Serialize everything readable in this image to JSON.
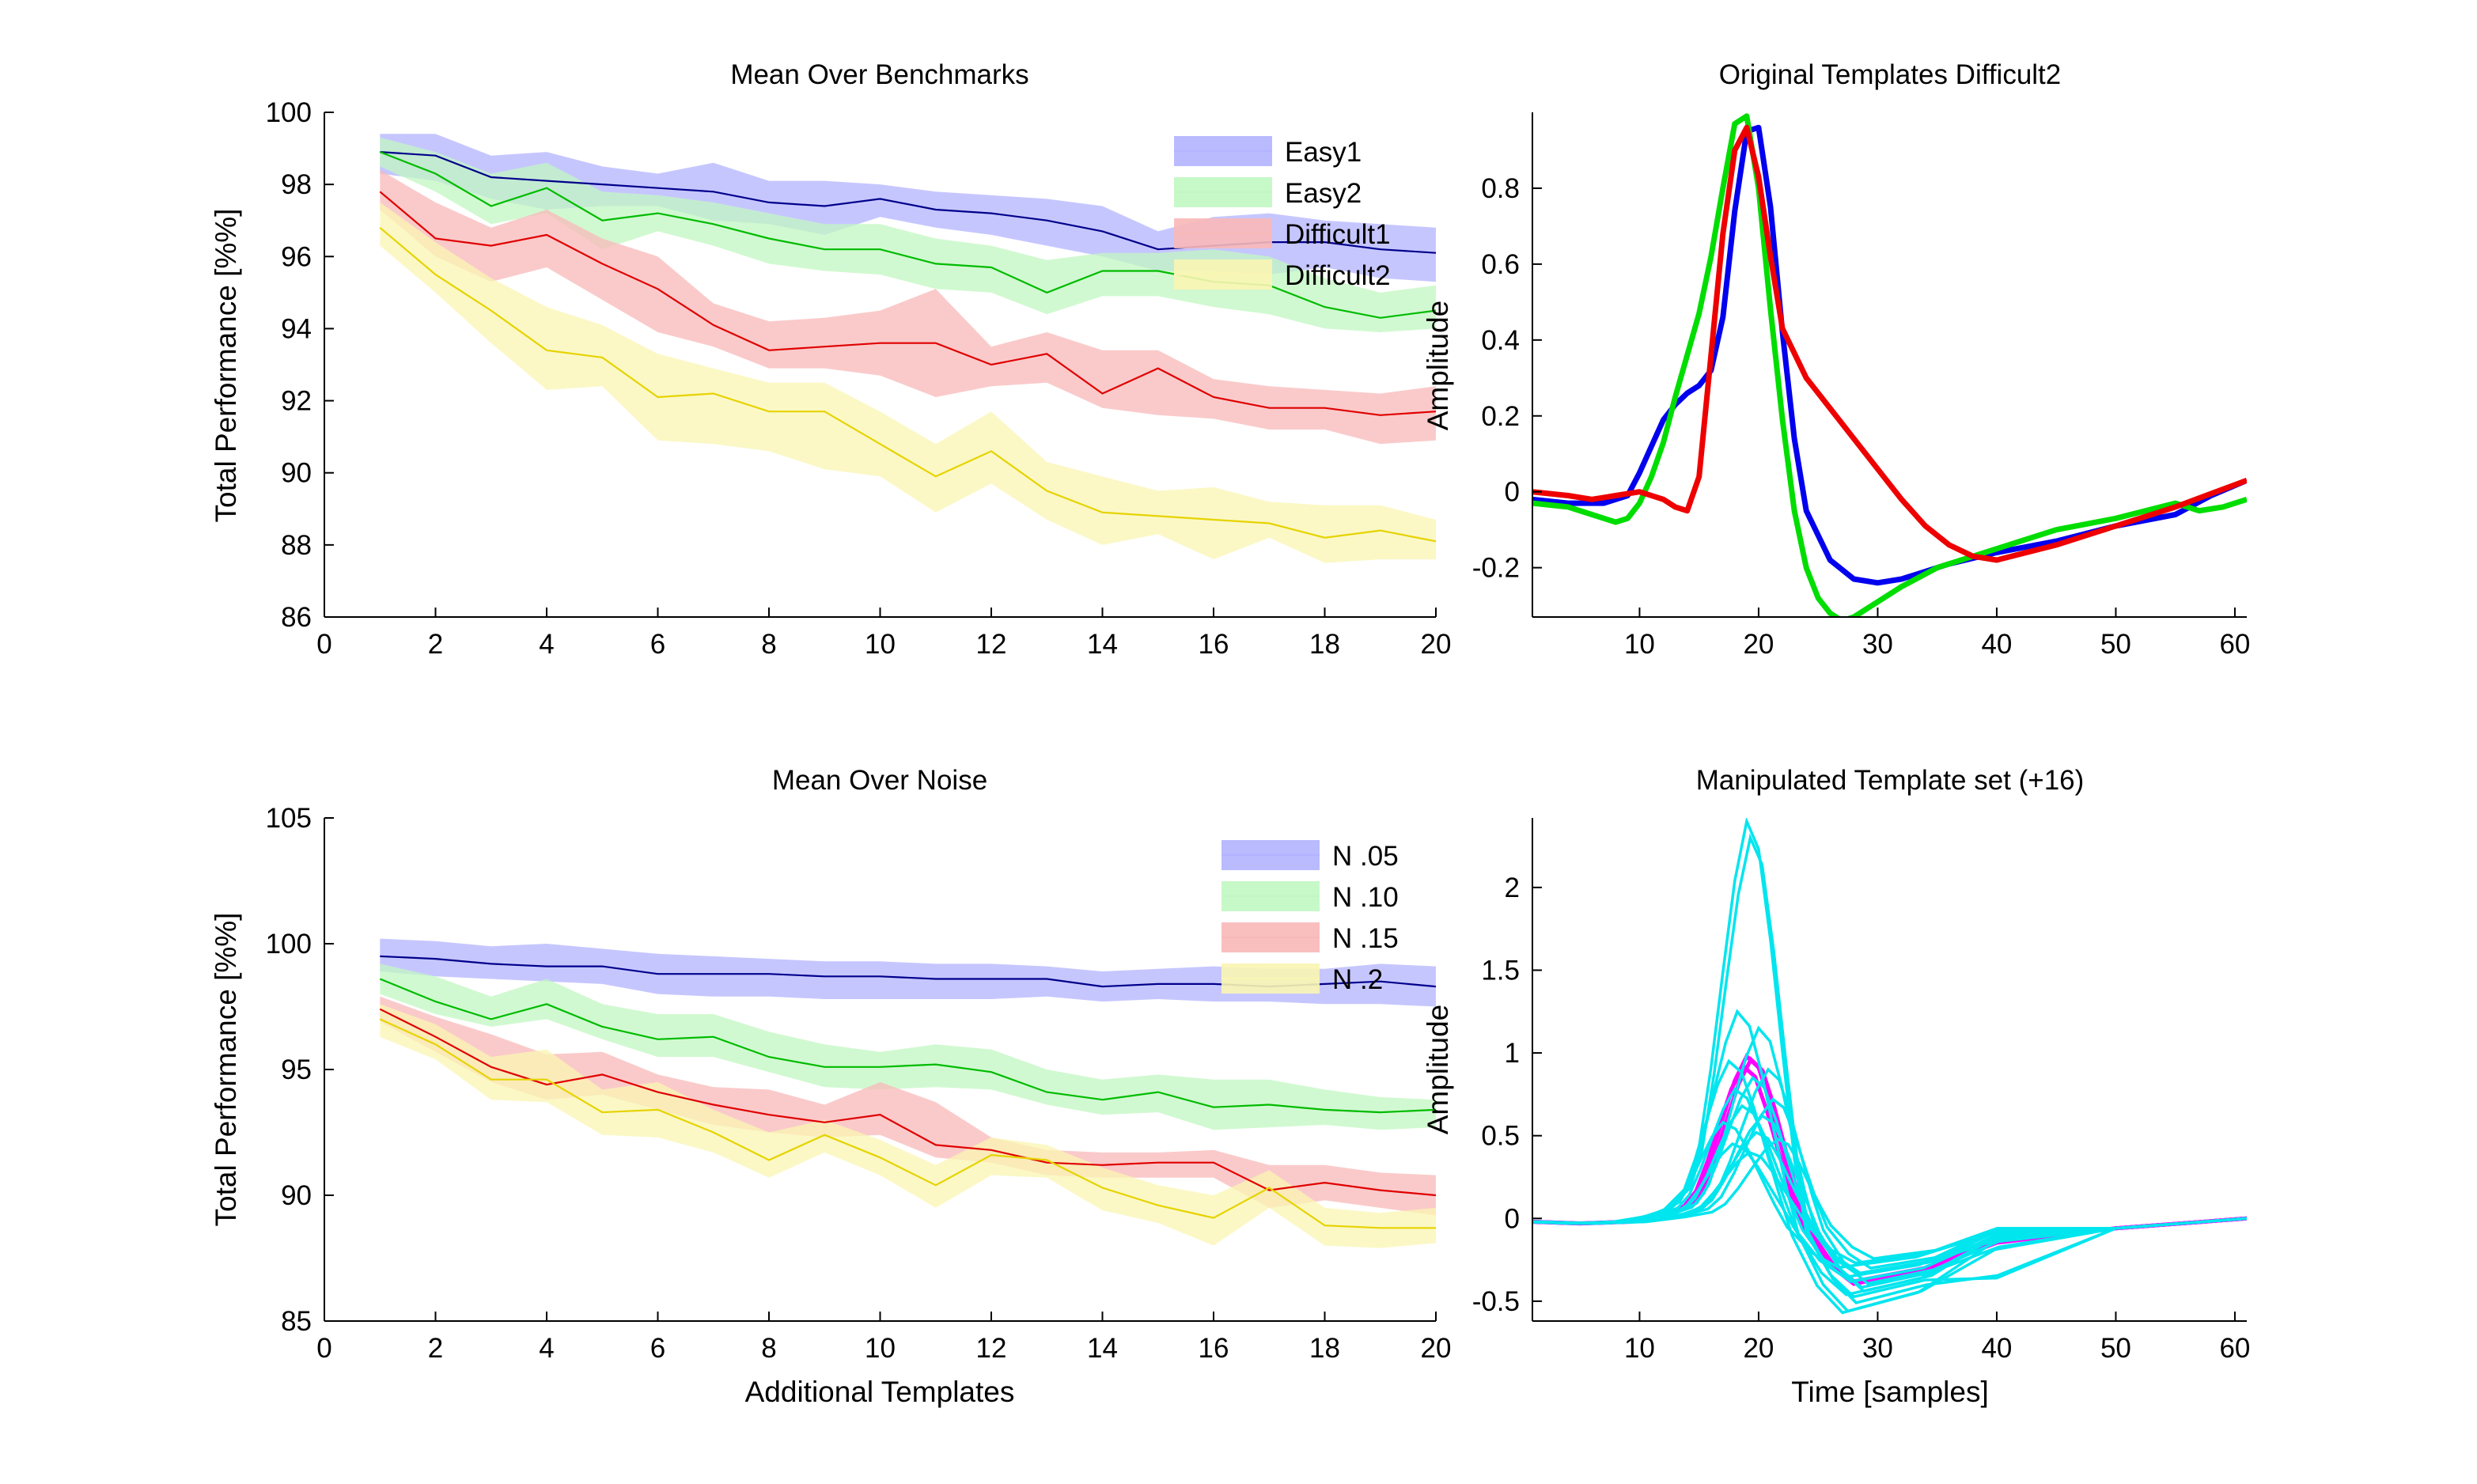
{
  "chart_data": [
    {
      "id": "benchmarks",
      "type": "area",
      "title": "Mean Over Benchmarks",
      "xlabel": "",
      "ylabel": "Total Performance [%%]",
      "xlim": [
        0,
        20
      ],
      "ylim": [
        86,
        100
      ],
      "xticks": [
        0,
        2,
        4,
        6,
        8,
        10,
        12,
        14,
        16,
        18,
        20
      ],
      "yticks": [
        86,
        88,
        90,
        92,
        94,
        96,
        98,
        100
      ],
      "legend": "top-right",
      "grid": false,
      "x": [
        1,
        2,
        3,
        4,
        5,
        6,
        7,
        8,
        9,
        10,
        11,
        12,
        13,
        14,
        15,
        16,
        17,
        18,
        19,
        20
      ],
      "series": [
        {
          "name": "Easy1",
          "line_color": "#00008B",
          "band_color": "#b3b3ff",
          "mean": [
            98.9,
            98.8,
            98.2,
            98.1,
            98.0,
            97.9,
            97.8,
            97.5,
            97.4,
            97.6,
            97.3,
            97.2,
            97.0,
            96.7,
            96.2,
            96.3,
            96.4,
            96.4,
            96.2,
            96.1
          ],
          "upper": [
            99.4,
            99.4,
            98.8,
            98.9,
            98.5,
            98.3,
            98.6,
            98.1,
            98.1,
            98.0,
            97.8,
            97.7,
            97.6,
            97.4,
            96.7,
            97.1,
            97.2,
            97.0,
            96.9,
            96.8
          ],
          "lower": [
            98.3,
            98.1,
            97.6,
            97.3,
            97.4,
            97.4,
            97.0,
            96.9,
            96.6,
            97.1,
            96.8,
            96.6,
            96.3,
            96.0,
            95.6,
            95.6,
            95.5,
            95.7,
            95.4,
            95.3
          ]
        },
        {
          "name": "Easy2",
          "line_color": "#00BB00",
          "band_color": "#c1f7c1",
          "mean": [
            98.9,
            98.3,
            97.4,
            97.9,
            97.0,
            97.2,
            96.9,
            96.5,
            96.2,
            96.2,
            95.8,
            95.7,
            95.0,
            95.6,
            95.6,
            95.3,
            95.2,
            94.6,
            94.3,
            94.5
          ],
          "upper": [
            99.3,
            98.9,
            98.3,
            98.6,
            97.8,
            97.7,
            97.5,
            97.2,
            96.9,
            96.9,
            96.5,
            96.3,
            95.9,
            96.1,
            96.1,
            96.2,
            96.0,
            95.4,
            95.0,
            95.2
          ],
          "lower": [
            98.5,
            97.8,
            96.9,
            97.2,
            96.2,
            96.7,
            96.3,
            95.8,
            95.6,
            95.5,
            95.1,
            95.0,
            94.4,
            94.9,
            94.9,
            94.6,
            94.4,
            94.0,
            93.9,
            94.0
          ]
        },
        {
          "name": "Difficult1",
          "line_color": "#E00000",
          "band_color": "#f8b8b8",
          "mean": [
            97.8,
            96.5,
            96.3,
            96.6,
            95.8,
            95.1,
            94.1,
            93.4,
            93.5,
            93.6,
            93.6,
            93.0,
            93.3,
            92.2,
            92.9,
            92.1,
            91.8,
            91.8,
            91.6,
            91.7
          ],
          "upper": [
            98.4,
            97.5,
            96.8,
            97.3,
            96.5,
            96.0,
            94.7,
            94.2,
            94.3,
            94.5,
            95.1,
            93.5,
            93.9,
            93.4,
            93.4,
            92.6,
            92.4,
            92.3,
            92.2,
            92.4
          ],
          "lower": [
            97.3,
            96.0,
            95.3,
            95.7,
            94.8,
            93.9,
            93.5,
            92.9,
            92.9,
            92.7,
            92.1,
            92.4,
            92.5,
            91.8,
            91.6,
            91.5,
            91.2,
            91.2,
            90.8,
            90.9
          ]
        },
        {
          "name": "Difficult2",
          "line_color": "#E6D300",
          "band_color": "#f9f5b3",
          "mean": [
            96.8,
            95.5,
            94.5,
            93.4,
            93.2,
            92.1,
            92.2,
            91.7,
            91.7,
            90.8,
            89.9,
            90.6,
            89.5,
            88.9,
            88.8,
            88.7,
            88.6,
            88.2,
            88.4,
            88.1
          ],
          "upper": [
            97.5,
            96.4,
            95.4,
            94.6,
            94.1,
            93.3,
            92.9,
            92.5,
            92.5,
            91.7,
            90.8,
            91.7,
            90.3,
            89.9,
            89.5,
            89.6,
            89.2,
            89.1,
            89.1,
            88.7
          ],
          "lower": [
            96.3,
            95.0,
            93.6,
            92.3,
            92.4,
            90.9,
            90.8,
            90.6,
            90.1,
            89.9,
            88.9,
            89.7,
            88.7,
            88.0,
            88.3,
            87.6,
            88.2,
            87.5,
            87.6,
            87.6
          ]
        }
      ]
    },
    {
      "id": "noise",
      "type": "area",
      "title": "Mean Over Noise",
      "xlabel": "Additional Templates",
      "ylabel": "Total Performance [%%]",
      "xlim": [
        0,
        20
      ],
      "ylim": [
        85,
        105
      ],
      "xticks": [
        0,
        2,
        4,
        6,
        8,
        10,
        12,
        14,
        16,
        18,
        20
      ],
      "yticks": [
        85,
        90,
        95,
        100,
        105
      ],
      "legend": "top-right",
      "grid": false,
      "x": [
        1,
        2,
        3,
        4,
        5,
        6,
        7,
        8,
        9,
        10,
        11,
        12,
        13,
        14,
        15,
        16,
        17,
        18,
        19,
        20
      ],
      "series": [
        {
          "name": "N .05",
          "line_color": "#00008B",
          "band_color": "#b3b3ff",
          "mean": [
            99.5,
            99.4,
            99.2,
            99.1,
            99.1,
            98.8,
            98.8,
            98.8,
            98.7,
            98.7,
            98.6,
            98.6,
            98.6,
            98.3,
            98.4,
            98.4,
            98.3,
            98.4,
            98.5,
            98.3
          ],
          "upper": [
            100.2,
            100.1,
            99.9,
            100.0,
            99.8,
            99.6,
            99.5,
            99.4,
            99.3,
            99.3,
            99.2,
            99.2,
            99.1,
            98.9,
            99.0,
            99.1,
            99.0,
            99.0,
            99.2,
            99.1
          ],
          "lower": [
            98.9,
            98.7,
            98.6,
            98.5,
            98.4,
            98.0,
            97.9,
            97.9,
            97.8,
            97.8,
            97.8,
            97.8,
            97.9,
            97.7,
            97.8,
            97.7,
            97.7,
            97.6,
            97.6,
            97.5
          ]
        },
        {
          "name": "N .10",
          "line_color": "#00BB00",
          "band_color": "#c1f7c1",
          "mean": [
            98.6,
            97.7,
            97.0,
            97.6,
            96.7,
            96.2,
            96.3,
            95.5,
            95.1,
            95.1,
            95.2,
            94.9,
            94.1,
            93.8,
            94.1,
            93.5,
            93.6,
            93.4,
            93.3,
            93.4
          ],
          "upper": [
            99.2,
            98.7,
            97.9,
            98.6,
            97.6,
            97.2,
            97.2,
            96.5,
            96.0,
            95.7,
            96.0,
            95.8,
            95.0,
            94.6,
            94.8,
            94.6,
            94.6,
            94.2,
            93.9,
            93.8
          ],
          "lower": [
            98.0,
            97.2,
            96.7,
            97.0,
            96.2,
            95.5,
            95.5,
            94.9,
            94.3,
            94.2,
            94.3,
            94.2,
            93.6,
            93.2,
            93.3,
            92.6,
            92.7,
            92.8,
            92.6,
            92.7
          ]
        },
        {
          "name": "N .15",
          "line_color": "#E00000",
          "band_color": "#f8b8b8",
          "mean": [
            97.4,
            96.3,
            95.1,
            94.4,
            94.8,
            94.1,
            93.6,
            93.2,
            92.9,
            93.2,
            92.0,
            91.8,
            91.3,
            91.2,
            91.3,
            91.3,
            90.2,
            90.5,
            90.2,
            90.0
          ],
          "upper": [
            97.9,
            97.1,
            96.4,
            95.6,
            95.7,
            94.8,
            94.3,
            94.2,
            93.6,
            94.5,
            93.7,
            92.3,
            91.8,
            91.7,
            91.7,
            91.8,
            91.2,
            91.2,
            90.9,
            90.8
          ],
          "lower": [
            96.9,
            95.7,
            94.5,
            93.8,
            94.0,
            93.4,
            92.8,
            92.5,
            92.3,
            92.4,
            91.5,
            91.3,
            90.8,
            90.7,
            90.7,
            90.7,
            89.5,
            89.8,
            89.5,
            89.2
          ]
        },
        {
          "name": "N .2",
          "line_color": "#E6D300",
          "band_color": "#f9f5b3",
          "mean": [
            97.0,
            96.0,
            94.6,
            94.6,
            93.3,
            93.4,
            92.5,
            91.4,
            92.4,
            91.5,
            90.4,
            91.6,
            91.4,
            90.3,
            89.6,
            89.1,
            90.3,
            88.8,
            88.7,
            88.7
          ],
          "upper": [
            97.6,
            96.8,
            95.5,
            95.8,
            94.2,
            94.5,
            93.4,
            92.5,
            93.0,
            92.2,
            91.2,
            92.3,
            92.0,
            91.1,
            90.4,
            90.0,
            91.0,
            89.5,
            89.3,
            89.5
          ],
          "lower": [
            96.3,
            95.4,
            93.8,
            93.7,
            92.4,
            92.3,
            91.7,
            90.7,
            91.7,
            90.8,
            89.5,
            90.8,
            90.7,
            89.4,
            88.9,
            88.0,
            89.5,
            88.0,
            87.9,
            88.1
          ]
        }
      ]
    },
    {
      "id": "original",
      "type": "line",
      "title": "Original Templates Difficult2",
      "xlabel": "",
      "ylabel": "Amplitude",
      "xlim": [
        1,
        61
      ],
      "ylim": [
        -0.33,
        1.0
      ],
      "xticks": [
        10,
        20,
        30,
        40,
        50,
        60
      ],
      "yticks": [
        -0.2,
        0,
        0.2,
        0.4,
        0.6,
        0.8
      ],
      "ytick_labels": [
        "-0.2",
        "0",
        "0.2",
        "0.4",
        "0.6",
        "0.8"
      ],
      "grid": false,
      "series": [
        {
          "color": "#0000EE",
          "x": [
            1,
            4,
            7,
            9,
            10,
            11,
            12,
            13,
            14,
            15,
            16,
            17,
            18,
            19,
            20,
            21,
            22,
            23,
            24,
            26,
            28,
            30,
            32,
            34,
            36,
            40,
            45,
            50,
            55,
            58,
            61
          ],
          "y": [
            -0.02,
            -0.03,
            -0.03,
            -0.01,
            0.05,
            0.12,
            0.19,
            0.23,
            0.26,
            0.28,
            0.32,
            0.46,
            0.74,
            0.95,
            0.96,
            0.75,
            0.42,
            0.14,
            -0.05,
            -0.18,
            -0.23,
            -0.24,
            -0.23,
            -0.21,
            -0.19,
            -0.16,
            -0.13,
            -0.09,
            -0.06,
            -0.01,
            0.03
          ]
        },
        {
          "color": "#00DD00",
          "x": [
            1,
            4,
            6,
            8,
            9,
            10,
            11,
            12,
            13,
            14,
            15,
            16,
            17,
            18,
            19,
            20,
            21,
            22,
            23,
            24,
            25,
            26,
            27,
            28,
            30,
            32,
            35,
            40,
            45,
            50,
            55,
            57,
            59,
            61
          ],
          "y": [
            -0.03,
            -0.04,
            -0.06,
            -0.08,
            -0.07,
            -0.03,
            0.04,
            0.13,
            0.25,
            0.36,
            0.47,
            0.62,
            0.8,
            0.97,
            0.99,
            0.8,
            0.48,
            0.19,
            -0.05,
            -0.2,
            -0.28,
            -0.32,
            -0.34,
            -0.33,
            -0.29,
            -0.25,
            -0.2,
            -0.15,
            -0.1,
            -0.07,
            -0.03,
            -0.05,
            -0.04,
            -0.02
          ]
        },
        {
          "color": "#EE0000",
          "x": [
            1,
            4,
            6,
            8,
            10,
            12,
            13,
            14,
            15,
            16,
            17,
            18,
            19,
            20,
            21,
            22,
            24,
            26,
            28,
            30,
            32,
            34,
            36,
            38,
            40,
            45,
            50,
            55,
            61
          ],
          "y": [
            0.0,
            -0.01,
            -0.02,
            -0.01,
            0.0,
            -0.02,
            -0.04,
            -0.05,
            0.04,
            0.36,
            0.68,
            0.9,
            0.96,
            0.83,
            0.62,
            0.43,
            0.3,
            0.22,
            0.14,
            0.06,
            -0.02,
            -0.09,
            -0.14,
            -0.17,
            -0.18,
            -0.14,
            -0.09,
            -0.04,
            0.03
          ]
        }
      ]
    },
    {
      "id": "manipulated",
      "type": "line",
      "title": "Manipulated Template set (+16)",
      "xlabel": "Time [samples]",
      "ylabel": "Amplitude",
      "xlim": [
        1,
        61
      ],
      "ylim": [
        -0.62,
        2.42
      ],
      "xticks": [
        10,
        20,
        30,
        40,
        50,
        60
      ],
      "yticks": [
        -0.5,
        0,
        0.5,
        1,
        1.5,
        2
      ],
      "ytick_labels": [
        "-0.5",
        "0",
        "0.5",
        "1",
        "1.5",
        "2"
      ],
      "grid": false,
      "base_template": {
        "x": [
          1,
          5,
          9,
          12,
          14,
          15,
          16,
          17,
          18,
          19,
          20,
          21,
          22,
          23,
          24,
          26,
          28,
          30,
          34,
          40,
          50,
          61
        ],
        "y": [
          -0.02,
          -0.03,
          -0.02,
          0.02,
          0.08,
          0.18,
          0.38,
          0.62,
          0.85,
          1.0,
          0.93,
          0.7,
          0.42,
          0.15,
          -0.05,
          -0.2,
          -0.28,
          -0.26,
          -0.22,
          -0.15,
          -0.06,
          0.0
        ]
      },
      "magenta_scales": [
        0.98,
        0.92,
        0.96
      ],
      "magenta_shifts": [
        0,
        -0.3,
        0.35
      ],
      "magenta_color": "#FF00FF",
      "cyan_color": "#00E5EE",
      "cyan_scales": [
        2.4,
        2.3,
        1.25,
        1.15,
        0.95,
        0.9,
        0.85,
        0.78,
        0.72,
        0.68,
        0.62,
        0.58,
        0.52,
        0.48,
        0.45,
        0.4
      ],
      "cyan_shifts": [
        0,
        0.3,
        -0.8,
        1.0,
        -1.5,
        1.8,
        0.5,
        -1.0,
        2.2,
        -0.4,
        1.3,
        -2.0,
        0.8,
        2.6,
        -1.2,
        0.2
      ],
      "cyan_undershoot": [
        1.0,
        1.2,
        1.6,
        0.9,
        2.2,
        1.1,
        0.8,
        1.8,
        0.7,
        1.4,
        2.0,
        0.9,
        1.3,
        0.6,
        1.7,
        1.0
      ]
    }
  ]
}
